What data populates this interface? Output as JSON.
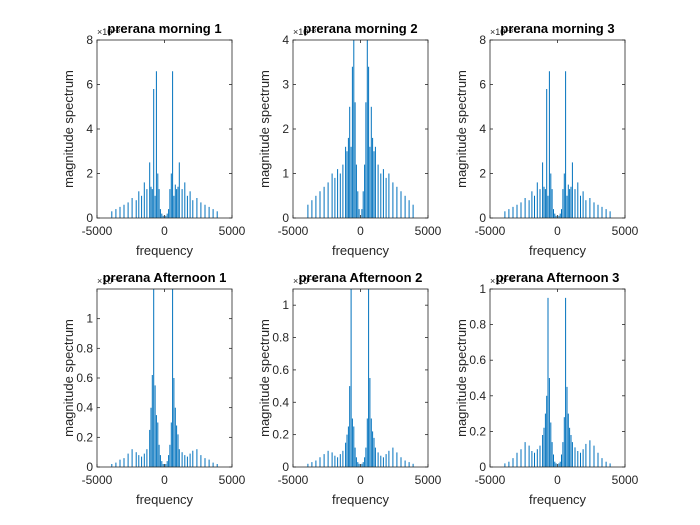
{
  "chart_data": [
    {
      "type": "line",
      "title": "prerana morning 1",
      "xlabel": "frequency",
      "ylabel": "magnitude spectrum",
      "exponent_label": "×10⁻³",
      "xlim": [
        -5000,
        5000
      ],
      "ylim": [
        0,
        8
      ],
      "xticks": [
        "-5000",
        "0",
        "5000"
      ],
      "yticks": [
        "0",
        "2",
        "4",
        "6",
        "8"
      ],
      "color": "#0072BD",
      "series": [
        {
          "x": [
            -3900,
            -3600,
            -3300,
            -3000,
            -2700,
            -2400,
            -2100,
            -1900,
            -1700,
            -1500,
            -1300,
            -1100,
            -1000,
            -900,
            -800,
            -700,
            -600,
            -500,
            -400,
            -300,
            -200,
            -100,
            100,
            200,
            300,
            400,
            500,
            600,
            700,
            800,
            900,
            1000,
            1100,
            1300,
            1500,
            1700,
            1900,
            2100,
            2400,
            2700,
            3000,
            3300,
            3600,
            3900
          ],
          "values": [
            0.3,
            0.4,
            0.5,
            0.6,
            0.7,
            0.9,
            0.8,
            1.2,
            1.0,
            1.6,
            1.3,
            2.5,
            1.4,
            1.3,
            5.8,
            1.0,
            6.6,
            2.0,
            1.3,
            0.4,
            0.2,
            0.1,
            0.1,
            0.2,
            0.4,
            1.3,
            2.0,
            6.6,
            1.0,
            1.5,
            1.3,
            1.4,
            2.5,
            1.3,
            1.6,
            1.0,
            1.2,
            0.8,
            0.9,
            0.7,
            0.6,
            0.5,
            0.4,
            0.3
          ]
        }
      ]
    },
    {
      "type": "line",
      "title": "prerana morning 2",
      "xlabel": "frequency",
      "ylabel": "magnitude spectrum",
      "exponent_label": "×10⁻³",
      "xlim": [
        -5000,
        5000
      ],
      "ylim": [
        0,
        4
      ],
      "xticks": [
        "-5000",
        "0",
        "5000"
      ],
      "yticks": [
        "0",
        "1",
        "2",
        "3",
        "4"
      ],
      "color": "#0072BD",
      "series": [
        {
          "x": [
            -3900,
            -3600,
            -3300,
            -3000,
            -2700,
            -2400,
            -2100,
            -1900,
            -1700,
            -1500,
            -1300,
            -1100,
            -1000,
            -900,
            -800,
            -700,
            -600,
            -500,
            -400,
            -300,
            -200,
            -100,
            100,
            200,
            300,
            400,
            500,
            600,
            700,
            800,
            900,
            1000,
            1100,
            1300,
            1500,
            1700,
            1900,
            2100,
            2400,
            2700,
            3000,
            3300,
            3600,
            3900
          ],
          "values": [
            0.3,
            0.4,
            0.5,
            0.6,
            0.7,
            0.8,
            1.0,
            0.9,
            1.1,
            1.0,
            1.2,
            1.6,
            1.5,
            1.8,
            2.5,
            1.6,
            3.4,
            4.0,
            2.6,
            1.2,
            0.6,
            0.2,
            0.2,
            0.6,
            1.2,
            2.6,
            4.0,
            3.4,
            1.6,
            2.5,
            1.8,
            1.5,
            1.6,
            1.2,
            1.0,
            1.1,
            0.9,
            1.0,
            0.8,
            0.7,
            0.6,
            0.5,
            0.4,
            0.3
          ]
        }
      ]
    },
    {
      "type": "line",
      "title": "prerana morning 3",
      "xlabel": "frequency",
      "ylabel": "magnitude spectrum",
      "exponent_label": "×10⁻³",
      "xlim": [
        -5000,
        5000
      ],
      "ylim": [
        0,
        8
      ],
      "xticks": [
        "-5000",
        "0",
        "5000"
      ],
      "yticks": [
        "0",
        "2",
        "4",
        "6",
        "8"
      ],
      "color": "#0072BD",
      "series": [
        {
          "x": [
            -3900,
            -3600,
            -3300,
            -3000,
            -2700,
            -2400,
            -2100,
            -1900,
            -1700,
            -1500,
            -1300,
            -1100,
            -1000,
            -900,
            -800,
            -700,
            -600,
            -500,
            -400,
            -300,
            -200,
            -100,
            100,
            200,
            300,
            400,
            500,
            600,
            700,
            800,
            900,
            1000,
            1100,
            1300,
            1500,
            1700,
            1900,
            2100,
            2400,
            2700,
            3000,
            3300,
            3600,
            3900
          ],
          "values": [
            0.3,
            0.4,
            0.5,
            0.6,
            0.7,
            0.9,
            0.8,
            1.2,
            1.0,
            1.6,
            1.3,
            2.5,
            1.4,
            1.3,
            5.8,
            1.0,
            6.6,
            2.0,
            1.3,
            0.4,
            0.2,
            0.1,
            0.1,
            0.2,
            0.4,
            1.3,
            2.0,
            6.6,
            1.0,
            1.5,
            1.3,
            1.4,
            2.5,
            1.3,
            1.6,
            1.0,
            1.2,
            0.8,
            0.9,
            0.7,
            0.6,
            0.5,
            0.4,
            0.3
          ]
        }
      ]
    },
    {
      "type": "line",
      "title": "prerana Afternoon 1",
      "xlabel": "frequency",
      "ylabel": "magnitude spectrum",
      "exponent_label": "×10⁻³",
      "xlim": [
        -5000,
        5000
      ],
      "ylim": [
        0,
        1.2
      ],
      "xticks": [
        "-5000",
        "0",
        "5000"
      ],
      "yticks": [
        "0",
        "0.2",
        "0.4",
        "0.6",
        "0.8",
        "1"
      ],
      "ytick_values": [
        0,
        0.2,
        0.4,
        0.6,
        0.8,
        1
      ],
      "color": "#0072BD",
      "series": [
        {
          "x": [
            -3900,
            -3600,
            -3300,
            -3000,
            -2700,
            -2400,
            -2100,
            -1900,
            -1700,
            -1500,
            -1300,
            -1100,
            -1000,
            -900,
            -800,
            -700,
            -600,
            -500,
            -400,
            -300,
            -200,
            -100,
            100,
            200,
            300,
            400,
            500,
            600,
            700,
            800,
            900,
            1000,
            1100,
            1300,
            1500,
            1700,
            1900,
            2100,
            2400,
            2700,
            3000,
            3300,
            3600,
            3900
          ],
          "values": [
            0.02,
            0.03,
            0.05,
            0.06,
            0.09,
            0.12,
            0.1,
            0.08,
            0.07,
            0.09,
            0.12,
            0.25,
            0.4,
            0.62,
            1.2,
            0.55,
            0.35,
            0.3,
            0.15,
            0.08,
            0.04,
            0.02,
            0.02,
            0.04,
            0.08,
            0.15,
            0.3,
            1.2,
            0.6,
            0.4,
            0.28,
            0.22,
            0.12,
            0.1,
            0.08,
            0.07,
            0.09,
            0.11,
            0.12,
            0.08,
            0.06,
            0.05,
            0.03,
            0.02
          ]
        }
      ]
    },
    {
      "type": "line",
      "title": "prerana Afternoon 2",
      "xlabel": "frequency",
      "ylabel": "magnitude spectrum",
      "exponent_label": "×10⁻³",
      "xlim": [
        -5000,
        5000
      ],
      "ylim": [
        0,
        1.1
      ],
      "xticks": [
        "-5000",
        "0",
        "5000"
      ],
      "yticks": [
        "0",
        "0.2",
        "0.4",
        "0.6",
        "0.8",
        "1"
      ],
      "ytick_values": [
        0,
        0.2,
        0.4,
        0.6,
        0.8,
        1
      ],
      "color": "#0072BD",
      "series": [
        {
          "x": [
            -3900,
            -3600,
            -3300,
            -3000,
            -2700,
            -2400,
            -2100,
            -1900,
            -1700,
            -1500,
            -1300,
            -1100,
            -1000,
            -900,
            -800,
            -700,
            -600,
            -500,
            -400,
            -300,
            -200,
            -100,
            100,
            200,
            300,
            400,
            500,
            600,
            700,
            800,
            900,
            1000,
            1100,
            1300,
            1500,
            1700,
            1900,
            2100,
            2400,
            2700,
            3000,
            3300,
            3600,
            3900
          ],
          "values": [
            0.02,
            0.03,
            0.04,
            0.06,
            0.08,
            0.1,
            0.09,
            0.07,
            0.06,
            0.08,
            0.1,
            0.15,
            0.2,
            0.25,
            0.5,
            1.1,
            0.3,
            0.25,
            0.12,
            0.06,
            0.03,
            0.02,
            0.02,
            0.03,
            0.06,
            0.12,
            0.3,
            1.1,
            0.55,
            0.3,
            0.22,
            0.18,
            0.12,
            0.09,
            0.07,
            0.06,
            0.08,
            0.1,
            0.12,
            0.09,
            0.06,
            0.04,
            0.03,
            0.02
          ]
        }
      ]
    },
    {
      "type": "line",
      "title": "prerana Afternoon 3",
      "xlabel": "frequency",
      "ylabel": "magnitude spectrum",
      "exponent_label": "×10⁻³",
      "xlim": [
        -5000,
        5000
      ],
      "ylim": [
        0,
        1
      ],
      "xticks": [
        "-5000",
        "0",
        "5000"
      ],
      "yticks": [
        "0",
        "0.2",
        "0.4",
        "0.6",
        "0.8",
        "1"
      ],
      "ytick_values": [
        0,
        0.2,
        0.4,
        0.6,
        0.8,
        1
      ],
      "color": "#0072BD",
      "series": [
        {
          "x": [
            -3900,
            -3600,
            -3300,
            -3000,
            -2700,
            -2400,
            -2100,
            -1900,
            -1700,
            -1500,
            -1300,
            -1100,
            -1000,
            -900,
            -800,
            -700,
            -600,
            -500,
            -400,
            -300,
            -200,
            -100,
            100,
            200,
            300,
            400,
            500,
            600,
            700,
            800,
            900,
            1000,
            1100,
            1300,
            1500,
            1700,
            1900,
            2100,
            2400,
            2700,
            3000,
            3300,
            3600,
            3900
          ],
          "values": [
            0.02,
            0.03,
            0.05,
            0.08,
            0.1,
            0.14,
            0.12,
            0.09,
            0.08,
            0.1,
            0.12,
            0.18,
            0.22,
            0.3,
            0.4,
            0.95,
            0.5,
            0.25,
            0.14,
            0.07,
            0.03,
            0.02,
            0.02,
            0.03,
            0.07,
            0.14,
            0.28,
            0.95,
            0.45,
            0.3,
            0.22,
            0.18,
            0.14,
            0.11,
            0.09,
            0.08,
            0.1,
            0.13,
            0.15,
            0.12,
            0.08,
            0.05,
            0.03,
            0.02
          ]
        }
      ]
    }
  ]
}
